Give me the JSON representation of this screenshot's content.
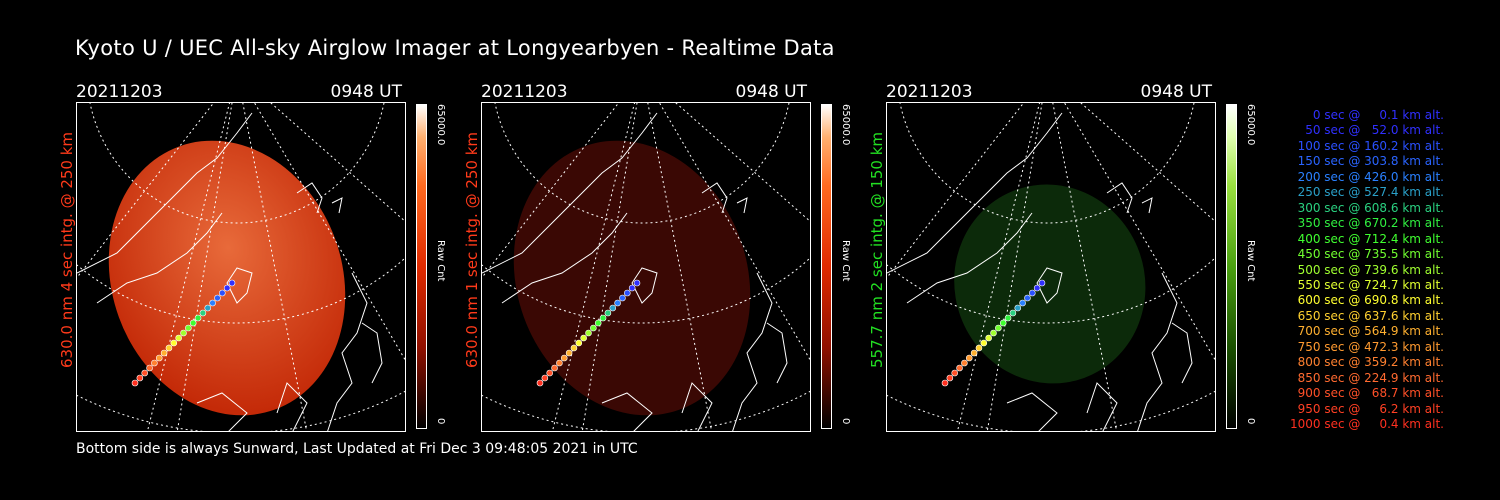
{
  "title": "Kyoto U / UEC All-sky Airglow Imager at Longyearbyen - Realtime Data",
  "footer": "Bottom side is always Sunward, Last Updated at Fri Dec  3 09:48:05 2021 in UTC",
  "colors": {
    "red_label": "#ff3a1a",
    "green_label": "#22e022",
    "panel1_disc": "#c42a08",
    "panel2_disc": "#3a0804",
    "panel3_disc": "#0c2a0a"
  },
  "panels": [
    {
      "date": "20211203",
      "time": "0948 UT",
      "vertical_label": "630.0 nm 4 sec intg. @ 250 km",
      "colorbar_max": "65000.0",
      "colorbar_label": "Raw Cnt",
      "colorbar_min": "0",
      "intensity": 1.0
    },
    {
      "date": "20211203",
      "time": "0948 UT",
      "vertical_label": "630.0 nm 1 sec intg. @ 250 km",
      "colorbar_max": "65000.0",
      "colorbar_label": "Raw Cnt",
      "colorbar_min": "0",
      "intensity": 0.28
    },
    {
      "date": "20211203",
      "time": "0948 UT",
      "vertical_label": "557.7 nm 2 sec intg. @ 150 km",
      "colorbar_max": "65000.0",
      "colorbar_label": "Raw Cnt",
      "colorbar_min": "0",
      "intensity": 0.25
    }
  ],
  "legend": [
    {
      "text": "   0 sec @     0.1 km alt.",
      "color": "#3030ff"
    },
    {
      "text": "  50 sec @   52.0 km alt.",
      "color": "#3030ff"
    },
    {
      "text": " 100 sec @ 160.2 km alt.",
      "color": "#2a50ff"
    },
    {
      "text": " 150 sec @ 303.8 km alt.",
      "color": "#2a64ff"
    },
    {
      "text": " 200 sec @ 426.0 km alt.",
      "color": "#2a80ff"
    },
    {
      "text": " 250 sec @ 527.4 km alt.",
      "color": "#2aa0c8"
    },
    {
      "text": " 300 sec @ 608.6 km alt.",
      "color": "#2ad080"
    },
    {
      "text": " 350 sec @ 670.2 km alt.",
      "color": "#30f040"
    },
    {
      "text": " 400 sec @ 712.4 km alt.",
      "color": "#40ff30"
    },
    {
      "text": " 450 sec @ 735.5 km alt.",
      "color": "#70ff30"
    },
    {
      "text": " 500 sec @ 739.6 km alt.",
      "color": "#a0ff30"
    },
    {
      "text": " 550 sec @ 724.7 km alt.",
      "color": "#e0ff30"
    },
    {
      "text": " 600 sec @ 690.8 km alt.",
      "color": "#ffff30"
    },
    {
      "text": " 650 sec @ 637.6 km alt.",
      "color": "#ffd030"
    },
    {
      "text": " 700 sec @ 564.9 km alt.",
      "color": "#ffb030"
    },
    {
      "text": " 750 sec @ 472.3 km alt.",
      "color": "#ff9a30"
    },
    {
      "text": " 800 sec @ 359.2 km alt.",
      "color": "#ff8030"
    },
    {
      "text": " 850 sec @ 224.9 km alt.",
      "color": "#ff6a30"
    },
    {
      "text": " 900 sec @   68.7 km alt.",
      "color": "#ff5028"
    },
    {
      "text": " 950 sec @     6.2 km alt.",
      "color": "#ff4024"
    },
    {
      "text": "1000 sec @     0.4 km alt.",
      "color": "#ff3020"
    }
  ]
}
